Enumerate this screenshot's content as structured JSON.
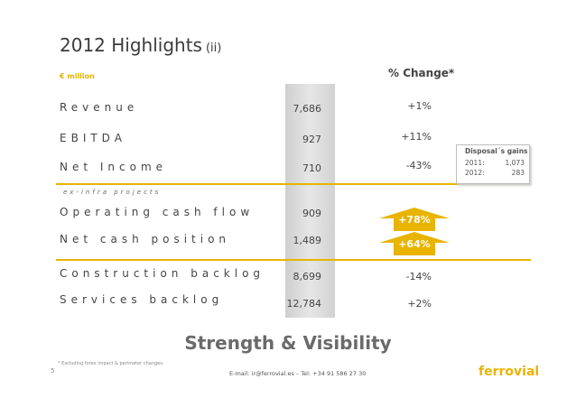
{
  "header": {
    "title": "2012 Highlights",
    "subtitle": "(ii)",
    "unit": "€ million",
    "change_header": "% Change*"
  },
  "rows": [
    {
      "label": "Revenue",
      "value": "7,686",
      "change": "+1%"
    },
    {
      "label": "EBITDA",
      "value": "927",
      "change": "+11%"
    },
    {
      "label": "Net Income",
      "value": "710",
      "change": "-43%"
    },
    {
      "label": "Operating cash flow",
      "value": "909",
      "change": "+78%"
    },
    {
      "label": "Net cash position",
      "value": "1,489",
      "change": "+64%"
    },
    {
      "label": "Construction backlog",
      "value": "8,699",
      "change": "-14%"
    },
    {
      "label": "Services backlog",
      "value": "12,784",
      "change": "+2%"
    }
  ],
  "ex_infra": "ex-infra projects",
  "disposal": {
    "title": "Disposal´s gains",
    "entries": [
      {
        "year": "2011:",
        "value": "1,073"
      },
      {
        "year": "2012:",
        "value": "283"
      }
    ]
  },
  "tagline": "Strength & Visibility",
  "footer": {
    "footnote": "* Excluding forex impact & perimeter changes.",
    "page": "5",
    "contact": "E-mail: ir@ferrovial.es – Tel: +34 91 586 27 30",
    "logo": "ferrovial"
  },
  "colors": {
    "accent": "#e8b400",
    "text": "#444444",
    "column": "#d6d6d6"
  }
}
